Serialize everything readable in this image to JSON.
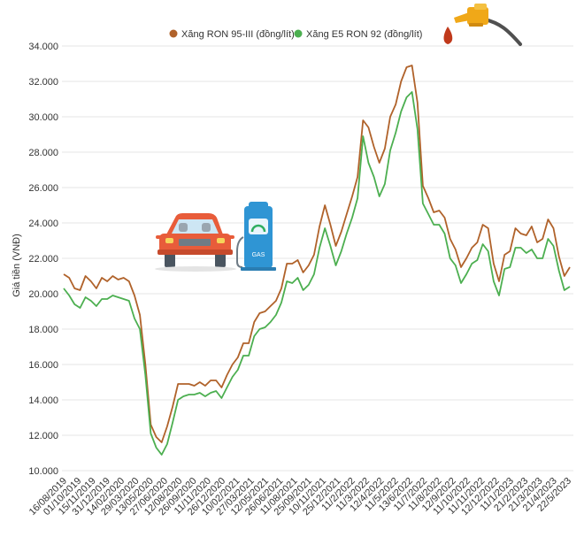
{
  "chart_data": {
    "type": "line",
    "title": "",
    "xlabel": "",
    "ylabel": "Giá tiền (VNĐ)",
    "ylim": [
      10000,
      34000
    ],
    "yticks": [
      {
        "value": 10000,
        "label": "10.000"
      },
      {
        "value": 12000,
        "label": "12.000"
      },
      {
        "value": 14000,
        "label": "14.000"
      },
      {
        "value": 16000,
        "label": "16.000"
      },
      {
        "value": 18000,
        "label": "18.000"
      },
      {
        "value": 20000,
        "label": "20.000"
      },
      {
        "value": 22000,
        "label": "22.000"
      },
      {
        "value": 24000,
        "label": "24.000"
      },
      {
        "value": 26000,
        "label": "26.000"
      },
      {
        "value": 28000,
        "label": "28.000"
      },
      {
        "value": 30000,
        "label": "30.000"
      },
      {
        "value": 32000,
        "label": "32.000"
      },
      {
        "value": 34000,
        "label": "34.000"
      }
    ],
    "grid": true,
    "legend_position": "top-center",
    "x_tick_labels": [
      "16/08/2019",
      "01/10/2019",
      "15/11/2019",
      "31/12/2019",
      "14/02/2020",
      "29/03/2020",
      "13/05/2020",
      "27/06/2020",
      "12/08/2020",
      "26/09/2020",
      "11/11/2020",
      "26/12/2020",
      "10/02/2021",
      "27/03/2021",
      "12/05/2021",
      "26/06/2021",
      "11/08/2021",
      "25/09/2021",
      "10/11/2021",
      "25/12/2021",
      "11/2/2022",
      "11/3/2022",
      "12/4/2022",
      "11/5/2022",
      "13/6/2022",
      "11/7/2022",
      "11/8/2022",
      "12/9/2022",
      "11/10/2022",
      "11/11/2022",
      "12/12/2022",
      "11/1/2023",
      "21/2/2023",
      "21/3/2023",
      "21/4/2023",
      "22/5/2023"
    ],
    "series": [
      {
        "name": "Xăng RON 95-III (đồng/lít)",
        "color": "#b0622a",
        "values": [
          21100,
          20900,
          20300,
          20200,
          21000,
          20700,
          20300,
          20900,
          20700,
          21000,
          20800,
          20900,
          20700,
          19900,
          18800,
          16000,
          12600,
          11900,
          11600,
          12500,
          13600,
          14900,
          14900,
          14900,
          14800,
          15000,
          14800,
          15100,
          15100,
          14700,
          15400,
          16000,
          16400,
          17200,
          17200,
          18400,
          18900,
          19000,
          19300,
          19600,
          20300,
          21700,
          21700,
          21900,
          21200,
          21600,
          22200,
          23800,
          25000,
          23900,
          22700,
          23500,
          24500,
          25500,
          26600,
          29800,
          29400,
          28300,
          27400,
          28200,
          30000,
          30700,
          32000,
          32800,
          32900,
          30800,
          26100,
          25400,
          24600,
          24700,
          24300,
          23100,
          22500,
          21500,
          22000,
          22600,
          22900,
          23900,
          23700,
          21700,
          20700,
          22200,
          22400,
          23700,
          23400,
          23300,
          23800,
          22900,
          23100,
          24200,
          23700,
          22100,
          21000,
          21500
        ]
      },
      {
        "name": "Xăng E5 RON 92 (đồng/lít)",
        "color": "#4caf50",
        "values": [
          20300,
          19900,
          19400,
          19200,
          19800,
          19600,
          19300,
          19700,
          19700,
          19900,
          19800,
          19700,
          19600,
          18600,
          18000,
          15400,
          12100,
          11300,
          10900,
          11500,
          12700,
          14000,
          14200,
          14300,
          14300,
          14400,
          14200,
          14400,
          14500,
          14100,
          14700,
          15300,
          15700,
          16500,
          16500,
          17600,
          18000,
          18100,
          18400,
          18800,
          19500,
          20700,
          20600,
          20900,
          20200,
          20500,
          21100,
          22600,
          23700,
          22700,
          21600,
          22400,
          23400,
          24300,
          25400,
          28900,
          27400,
          26600,
          25500,
          26200,
          28100,
          29100,
          30300,
          31100,
          31400,
          29300,
          25100,
          24500,
          23900,
          23900,
          23400,
          22000,
          21600,
          20600,
          21100,
          21700,
          21900,
          22800,
          22400,
          20700,
          19900,
          21400,
          21500,
          22600,
          22600,
          22300,
          22500,
          22000,
          22000,
          23100,
          22700,
          21300,
          20200,
          20400
        ]
      }
    ]
  }
}
